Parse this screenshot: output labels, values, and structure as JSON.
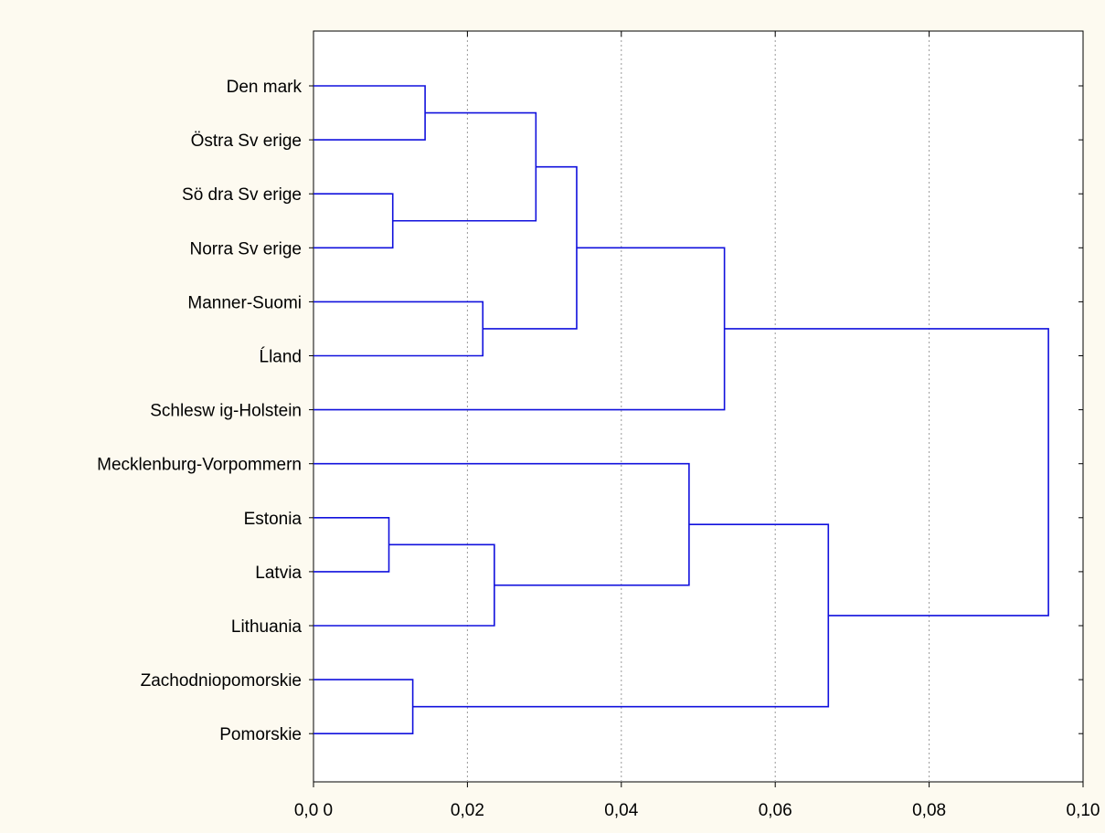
{
  "chart_data": {
    "type": "dendrogram",
    "orientation": "horizontal",
    "x_range": [
      0,
      0.1
    ],
    "x_ticks": [
      {
        "value": 0.0,
        "label": "0,0 0"
      },
      {
        "value": 0.02,
        "label": "0,02"
      },
      {
        "value": 0.04,
        "label": "0,04"
      },
      {
        "value": 0.06,
        "label": "0,06"
      },
      {
        "value": 0.08,
        "label": "0,08"
      },
      {
        "value": 0.1,
        "label": "0,10"
      }
    ],
    "grid": "vertical-dotted",
    "line_color": "#1111dd",
    "leaves": [
      {
        "id": "denmark",
        "label": "Den mark"
      },
      {
        "id": "ostra",
        "label": "Östra Sv erige"
      },
      {
        "id": "sodra",
        "label": "Sö dra Sv erige"
      },
      {
        "id": "norra",
        "label": "Norra Sv erige"
      },
      {
        "id": "manner",
        "label": "Manner-Suomi"
      },
      {
        "id": "aland",
        "label": "Ĺland"
      },
      {
        "id": "schleswig",
        "label": "Schlesw ig-Holstein"
      },
      {
        "id": "mecklenburg",
        "label": "Mecklenburg-Vorpommern"
      },
      {
        "id": "estonia",
        "label": "Estonia"
      },
      {
        "id": "latvia",
        "label": "Latvia"
      },
      {
        "id": "lithuania",
        "label": "Lithuania"
      },
      {
        "id": "zachodnio",
        "label": "Zachodniopomorskie"
      },
      {
        "id": "pomorskie",
        "label": "Pomorskie"
      }
    ],
    "merges": [
      {
        "id": "m1",
        "children": [
          "denmark",
          "ostra"
        ],
        "height": 0.0145
      },
      {
        "id": "m2",
        "children": [
          "sodra",
          "norra"
        ],
        "height": 0.0103
      },
      {
        "id": "m3",
        "children": [
          "m1",
          "m2"
        ],
        "height": 0.0289
      },
      {
        "id": "m4",
        "children": [
          "manner",
          "aland"
        ],
        "height": 0.022
      },
      {
        "id": "m5",
        "children": [
          "m3",
          "m4"
        ],
        "height": 0.0342
      },
      {
        "id": "m6",
        "children": [
          "m5",
          "schleswig"
        ],
        "height": 0.0534
      },
      {
        "id": "m7",
        "children": [
          "estonia",
          "latvia"
        ],
        "height": 0.0098
      },
      {
        "id": "m8",
        "children": [
          "m7",
          "lithuania"
        ],
        "height": 0.0235
      },
      {
        "id": "m9",
        "children": [
          "mecklenburg",
          "m8"
        ],
        "height": 0.0488
      },
      {
        "id": "m10",
        "children": [
          "zachodnio",
          "pomorskie"
        ],
        "height": 0.0129
      },
      {
        "id": "m11",
        "children": [
          "m9",
          "m10"
        ],
        "height": 0.0669
      },
      {
        "id": "m12",
        "children": [
          "m6",
          "m11"
        ],
        "height": 0.0955
      }
    ]
  }
}
